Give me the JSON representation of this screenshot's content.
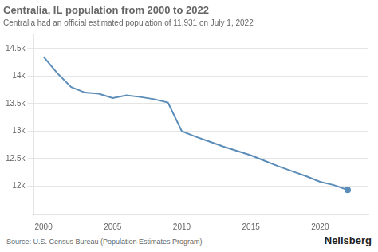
{
  "chart_data": {
    "type": "line",
    "title": "Centralia, IL population from 2000 to 2022",
    "subtitle": "Centralia had an official estimated population of 11,931 on July 1, 2022",
    "annotations": [
      "Source: U.S. Census Bureau (Population Estimates Program)",
      "Neilsberg"
    ],
    "x": [
      2000,
      2001,
      2002,
      2003,
      2004,
      2005,
      2006,
      2007,
      2008,
      2009,
      2010,
      2011,
      2012,
      2013,
      2014,
      2015,
      2016,
      2017,
      2018,
      2019,
      2020,
      2021,
      2022
    ],
    "values": [
      14350,
      14050,
      13800,
      13700,
      13680,
      13600,
      13650,
      13620,
      13580,
      13520,
      13000,
      12900,
      12810,
      12720,
      12640,
      12560,
      12460,
      12360,
      12270,
      12180,
      12080,
      12020,
      11931
    ],
    "color": "#5b8db8",
    "xlim": [
      1999.3,
      2023.5
    ],
    "xticks": [
      2000,
      2005,
      2010,
      2015,
      2020
    ],
    "ylim": [
      11500,
      14750
    ],
    "yticks": [
      {
        "value": 12000,
        "label": "12k"
      },
      {
        "value": 12500,
        "label": "12.5k"
      },
      {
        "value": 13000,
        "label": "13k"
      },
      {
        "value": 13500,
        "label": "13.5k"
      },
      {
        "value": 14000,
        "label": "14k"
      },
      {
        "value": 14500,
        "label": "14.5k"
      }
    ],
    "grid": "y"
  }
}
